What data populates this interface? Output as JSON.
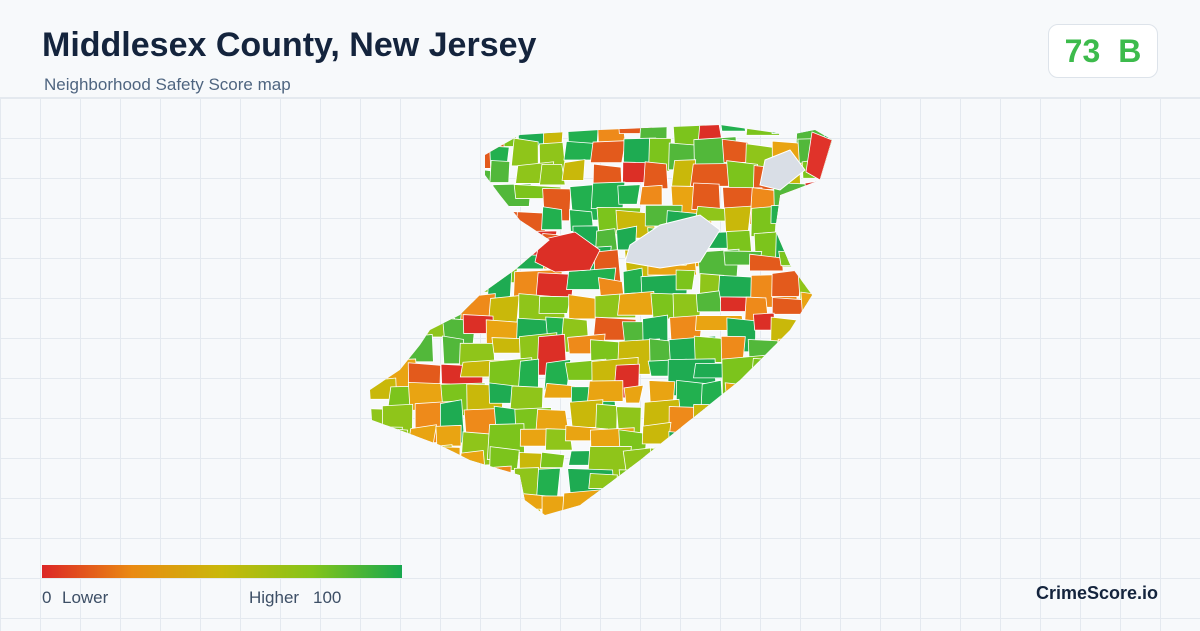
{
  "header": {
    "title": "Middlesex County, New Jersey",
    "subtitle": "Neighborhood Safety Score map"
  },
  "score": {
    "value": 73,
    "grade": "B"
  },
  "legend": {
    "min": 0,
    "min_label": "Lower",
    "max_label": "Higher",
    "max": 100
  },
  "footer": {
    "brand": "CrimeScore.io"
  }
}
